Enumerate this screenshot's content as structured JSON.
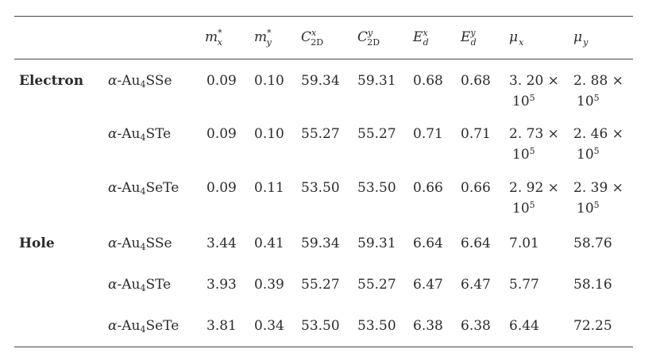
{
  "headers": {
    "mx": {
      "base": "m",
      "sup": "*",
      "sub": "x"
    },
    "my": {
      "base": "m",
      "sup": "*",
      "sub": "y"
    },
    "cx": {
      "base": "C",
      "sup": "x",
      "sub": "2D"
    },
    "cy": {
      "base": "C",
      "sup": "y",
      "sub": "2D"
    },
    "ex": {
      "base": "E",
      "sup": "x",
      "sub": "d"
    },
    "ey": {
      "base": "E",
      "sup": "y",
      "sub": "d"
    },
    "mux": {
      "base": "μ",
      "sub": "x"
    },
    "muy": {
      "base": "μ",
      "sub": "y"
    }
  },
  "groups": {
    "electron": "Electron",
    "hole": "Hole"
  },
  "rows": [
    {
      "mat": {
        "alpha": "α",
        "pre": "-Au",
        "sub": "4",
        "post": "SSe"
      },
      "mx": "0.09",
      "my": "0.10",
      "cx": "59.34",
      "cy": "59.31",
      "ex": "0.68",
      "ey": "0.68",
      "mux": {
        "l1": "3. 20 ×",
        "base": "10",
        "exp": "5"
      },
      "muy": {
        "l1": "2. 88 ×",
        "base": "10",
        "exp": "5"
      }
    },
    {
      "mat": {
        "alpha": "α",
        "pre": "-Au",
        "sub": "4",
        "post": "STe"
      },
      "mx": "0.09",
      "my": "0.10",
      "cx": "55.27",
      "cy": "55.27",
      "ex": "0.71",
      "ey": "0.71",
      "mux": {
        "l1": "2. 73 ×",
        "base": "10",
        "exp": "5"
      },
      "muy": {
        "l1": "2. 46 ×",
        "base": "10",
        "exp": "5"
      }
    },
    {
      "mat": {
        "alpha": "α",
        "pre": "-Au",
        "sub": "4",
        "post": "SeTe"
      },
      "mx": "0.09",
      "my": "0.11",
      "cx": "53.50",
      "cy": "53.50",
      "ex": "0.66",
      "ey": "0.66",
      "mux": {
        "l1": "2. 92 ×",
        "base": "10",
        "exp": "5"
      },
      "muy": {
        "l1": "2. 39 ×",
        "base": "10",
        "exp": "5"
      }
    },
    {
      "mat": {
        "alpha": "α",
        "pre": "-Au",
        "sub": "4",
        "post": "SSe"
      },
      "mx": "3.44",
      "my": "0.41",
      "cx": "59.34",
      "cy": "59.31",
      "ex": "6.64",
      "ey": "6.64",
      "mux": {
        "l1": "7.01"
      },
      "muy": {
        "l1": "58.76"
      }
    },
    {
      "mat": {
        "alpha": "α",
        "pre": "-Au",
        "sub": "4",
        "post": "STe"
      },
      "mx": "3.93",
      "my": "0.39",
      "cx": "55.27",
      "cy": "55.27",
      "ex": "6.47",
      "ey": "6.47",
      "mux": {
        "l1": "5.77"
      },
      "muy": {
        "l1": "58.16"
      }
    },
    {
      "mat": {
        "alpha": "α",
        "pre": "-Au",
        "sub": "4",
        "post": "SeTe"
      },
      "mx": "3.81",
      "my": "0.34",
      "cx": "53.50",
      "cy": "53.50",
      "ex": "6.38",
      "ey": "6.38",
      "mux": {
        "l1": "6.44"
      },
      "muy": {
        "l1": "72.25"
      }
    }
  ]
}
